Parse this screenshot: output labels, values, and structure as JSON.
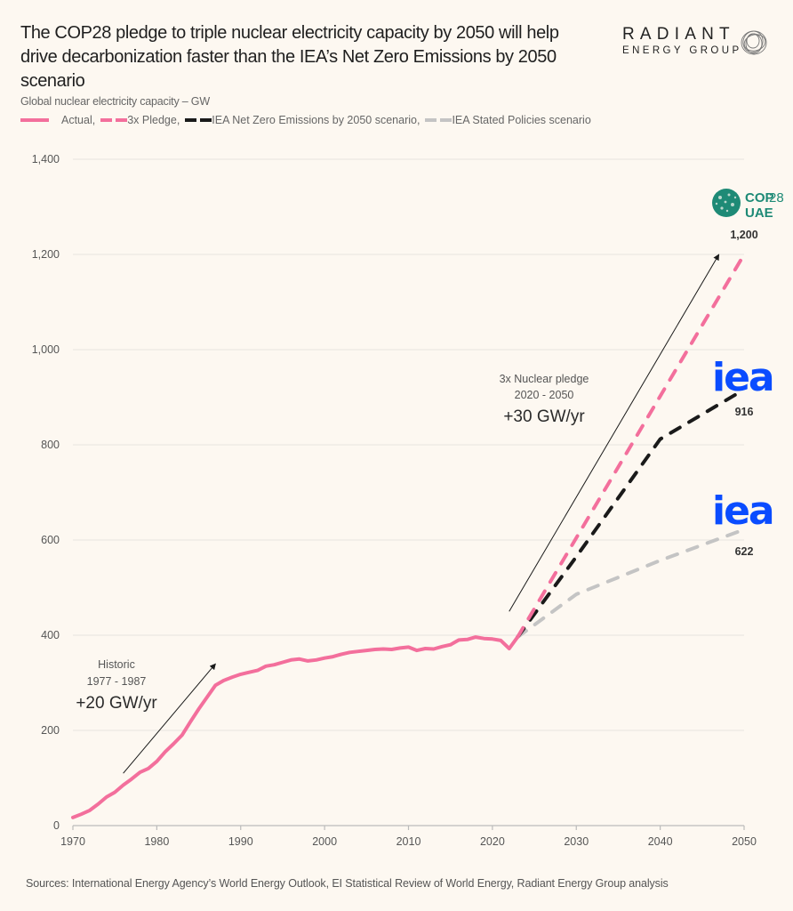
{
  "header": {
    "title": "The COP28 pledge to triple nuclear electricity capacity by 2050 will help drive decarbonization faster than the IEA’s Net Zero Emissions by 2050 scenario",
    "subtitle": "Global nuclear electricity capacity – GW"
  },
  "logo": {
    "line1": "RADIANT",
    "line2": "ENERGY GROUP"
  },
  "legend": [
    {
      "label": "Actual,",
      "style": "solid",
      "color": "#f36f9c"
    },
    {
      "label": "3x Pledge,",
      "style": "dash",
      "color": "#f36f9c"
    },
    {
      "label": "IEA Net Zero Emissions by 2050 scenario,",
      "style": "dash",
      "color": "#1a1a1a"
    },
    {
      "label": "IEA Stated Policies scenario",
      "style": "dash",
      "color": "#c4c4c4"
    }
  ],
  "annotations": {
    "historic": {
      "line1": "Historic",
      "line2": "1977 - 1987",
      "rate": "+20 GW/yr"
    },
    "pledge": {
      "line1": "3x Nuclear pledge",
      "line2": "2020 - 2050",
      "rate": "+30 GW/yr"
    },
    "end_labels": {
      "pledge": "1,200",
      "nze": "916",
      "steps": "622"
    },
    "logos": {
      "cop28_line1": "COP",
      "cop28_num": "28",
      "cop28_line2": "UAE",
      "iea": "iea"
    }
  },
  "source": "Sources: International Energy Agency’s World Energy Outlook, EI Statistical Review of World Energy, Radiant Energy Group analysis",
  "chart_data": {
    "type": "line",
    "title": "Global nuclear electricity capacity – GW",
    "xlabel": "",
    "ylabel": "GW",
    "xlim": [
      1970,
      2050
    ],
    "ylim": [
      0,
      1400
    ],
    "x_ticks": [
      1970,
      1980,
      1990,
      2000,
      2010,
      2020,
      2030,
      2040,
      2050
    ],
    "y_ticks": [
      0,
      200,
      400,
      600,
      800,
      1000,
      1200,
      1400
    ],
    "y_tick_labels": [
      "0",
      "200",
      "400",
      "600",
      "800",
      "1,000",
      "1,200",
      "1,400"
    ],
    "grid": "horizontal",
    "legend_position": "top-left",
    "series": [
      {
        "name": "Actual",
        "style": "solid",
        "color": "#f36f9c",
        "x": [
          1970,
          1971,
          1972,
          1973,
          1974,
          1975,
          1976,
          1977,
          1978,
          1979,
          1980,
          1981,
          1982,
          1983,
          1984,
          1985,
          1986,
          1987,
          1988,
          1989,
          1990,
          1991,
          1992,
          1993,
          1994,
          1995,
          1996,
          1997,
          1998,
          1999,
          2000,
          2001,
          2002,
          2003,
          2004,
          2005,
          2006,
          2007,
          2008,
          2009,
          2010,
          2011,
          2012,
          2013,
          2014,
          2015,
          2016,
          2017,
          2018,
          2019,
          2020,
          2021,
          2022,
          2023
        ],
        "values": [
          17,
          24,
          32,
          45,
          60,
          70,
          85,
          98,
          112,
          120,
          135,
          155,
          172,
          190,
          218,
          245,
          270,
          295,
          305,
          312,
          318,
          322,
          326,
          335,
          338,
          343,
          348,
          350,
          346,
          348,
          352,
          355,
          360,
          364,
          366,
          368,
          370,
          371,
          370,
          373,
          375,
          368,
          372,
          371,
          376,
          380,
          390,
          391,
          396,
          393,
          392,
          389,
          372,
          396
        ]
      },
      {
        "name": "3x Pledge",
        "style": "dash",
        "color": "#f36f9c",
        "x": [
          2023,
          2050
        ],
        "values": [
          396,
          1200
        ]
      },
      {
        "name": "IEA Net Zero Emissions by 2050 scenario",
        "style": "dash",
        "color": "#1a1a1a",
        "x": [
          2023,
          2030,
          2040,
          2050
        ],
        "values": [
          396,
          565,
          812,
          916
        ]
      },
      {
        "name": "IEA Stated Policies scenario",
        "style": "dash",
        "color": "#c4c4c4",
        "x": [
          2023,
          2030,
          2040,
          2050
        ],
        "values": [
          396,
          486,
          557,
          622
        ]
      }
    ],
    "annotations": [
      {
        "text": "Historic 1977 - 1987 +20 GW/yr",
        "arrow_from": [
          1976,
          110
        ],
        "arrow_to": [
          1987,
          340
        ]
      },
      {
        "text": "3x Nuclear pledge 2020 - 2050 +30 GW/yr",
        "arrow_from": [
          2022,
          450
        ],
        "arrow_to": [
          2047,
          1200
        ]
      },
      {
        "text": "1,200",
        "x": 2050,
        "y": 1200
      },
      {
        "text": "916",
        "x": 2050,
        "y": 916
      },
      {
        "text": "622",
        "x": 2050,
        "y": 622
      }
    ]
  }
}
